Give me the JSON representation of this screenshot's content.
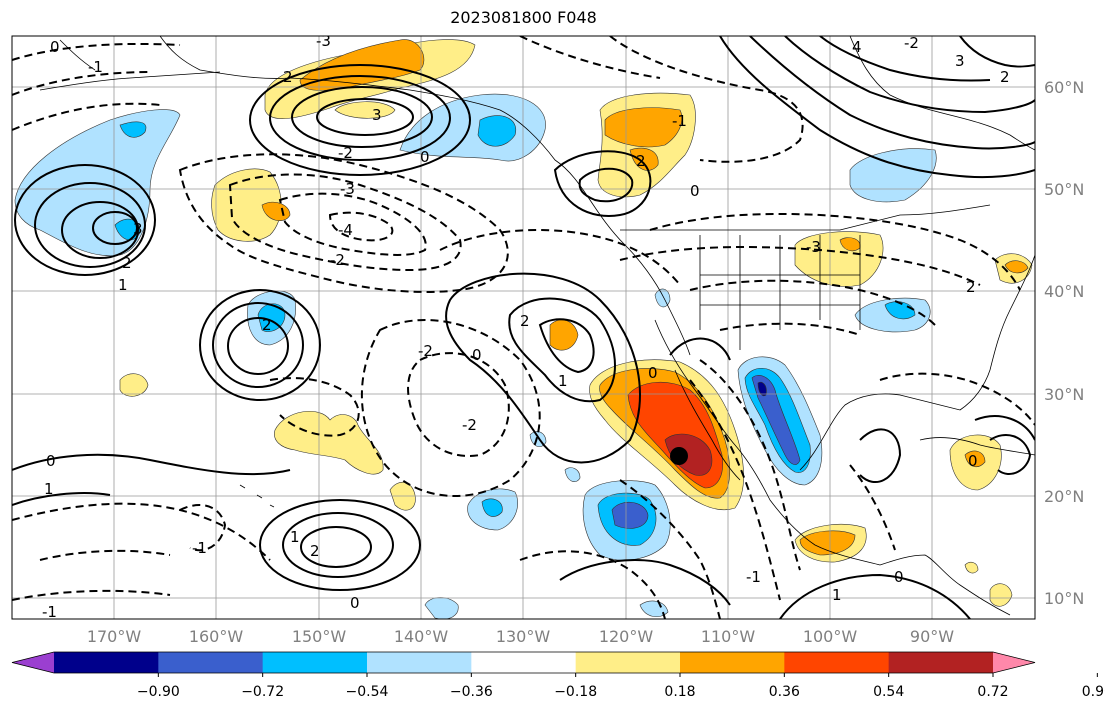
{
  "title": "2023081800 F048",
  "map": {
    "lon_labels": [
      "170°W",
      "160°W",
      "150°W",
      "140°W",
      "130°W",
      "120°W",
      "110°W",
      "100°W",
      "90°W"
    ],
    "lat_labels": [
      "60°N",
      "50°N",
      "40°N",
      "30°N",
      "20°N",
      "10°N"
    ],
    "gridlines": true,
    "marker": {
      "lon": "114°W",
      "lat": "24°N",
      "color": "#000000"
    }
  },
  "colorbar": {
    "ticks": [
      "−0.90",
      "−0.72",
      "−0.54",
      "−0.36",
      "−0.18",
      "0.18",
      "0.36",
      "0.54",
      "0.72",
      "0.90"
    ],
    "colors": [
      "#9b3fd0",
      "#00008b",
      "#3a5fcd",
      "#00bfff",
      "#b0e2ff",
      "#ffffff",
      "#ffee88",
      "#ffa500",
      "#ff4500",
      "#b22222",
      "#ff88aa"
    ],
    "extend": "both"
  },
  "contour_labels": [
    {
      "id": "c1",
      "text": "0"
    },
    {
      "id": "c2",
      "text": "-1"
    },
    {
      "id": "c3",
      "text": "-3"
    },
    {
      "id": "c4",
      "text": "2"
    },
    {
      "id": "c5",
      "text": "3"
    },
    {
      "id": "c6",
      "text": "-2"
    },
    {
      "id": "c7",
      "text": "0"
    },
    {
      "id": "c8",
      "text": "-3"
    },
    {
      "id": "c9",
      "text": "-4"
    },
    {
      "id": "c10",
      "text": "-2"
    },
    {
      "id": "c11",
      "text": "3"
    },
    {
      "id": "c12",
      "text": "2"
    },
    {
      "id": "c13",
      "text": "1"
    },
    {
      "id": "c14",
      "text": "2"
    },
    {
      "id": "c15",
      "text": "-2"
    },
    {
      "id": "c16",
      "text": "0"
    },
    {
      "id": "c17",
      "text": "2"
    },
    {
      "id": "c18",
      "text": "-2"
    },
    {
      "id": "c19",
      "text": "1"
    },
    {
      "id": "c20",
      "text": "0"
    },
    {
      "id": "c21",
      "text": "1"
    },
    {
      "id": "c22",
      "text": "-1"
    },
    {
      "id": "c23",
      "text": "1"
    },
    {
      "id": "c24",
      "text": "2"
    },
    {
      "id": "c25",
      "text": "0"
    },
    {
      "id": "c26",
      "text": "-1"
    },
    {
      "id": "c27",
      "text": "2"
    },
    {
      "id": "c28",
      "text": "-1"
    },
    {
      "id": "c29",
      "text": "4"
    },
    {
      "id": "c30",
      "text": "-2"
    },
    {
      "id": "c31",
      "text": "3"
    },
    {
      "id": "c32",
      "text": "2"
    },
    {
      "id": "c33",
      "text": "-3"
    },
    {
      "id": "c34",
      "text": "0"
    },
    {
      "id": "c35",
      "text": "0"
    },
    {
      "id": "c36",
      "text": "1"
    },
    {
      "id": "c37",
      "text": "0"
    },
    {
      "id": "c38",
      "text": "-1"
    },
    {
      "id": "c39",
      "text": "0"
    },
    {
      "id": "c40",
      "text": "2"
    }
  ]
}
